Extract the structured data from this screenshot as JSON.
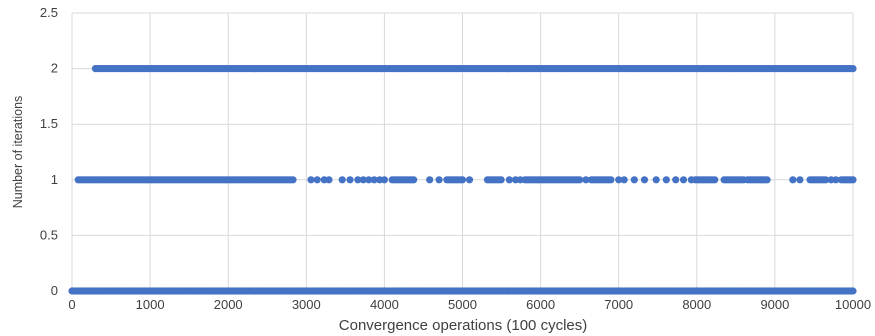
{
  "chart_data": {
    "type": "scatter",
    "title": "",
    "xlabel": "Convergence operations (100 cycles)",
    "ylabel": "Number of iterations",
    "xlim": [
      0,
      10000
    ],
    "ylim": [
      0,
      2.5
    ],
    "x_ticks": [
      0,
      1000,
      2000,
      3000,
      4000,
      5000,
      6000,
      7000,
      8000,
      9000,
      10000
    ],
    "y_ticks": [
      0,
      0.5,
      1,
      1.5,
      2,
      2.5
    ],
    "x_tick_labels": [
      "0",
      "1000",
      "2000",
      "3000",
      "4000",
      "5000",
      "6000",
      "7000",
      "8000",
      "9000",
      "10000"
    ],
    "y_tick_labels": [
      "0",
      "0.5",
      "1",
      "1.5",
      "2",
      "2.5"
    ],
    "grid": true,
    "legend": "none",
    "marker_color": "#4472C4",
    "series": [
      {
        "y": 0,
        "ranges": [
          [
            0,
            10000
          ]
        ],
        "points": []
      },
      {
        "y": 1,
        "ranges": [
          [
            80,
            2850
          ],
          [
            4100,
            4380
          ],
          [
            4800,
            5000
          ],
          [
            5320,
            5500
          ],
          [
            5800,
            6500
          ],
          [
            6650,
            6900
          ],
          [
            7980,
            8240
          ],
          [
            8350,
            8600
          ],
          [
            8650,
            8920
          ],
          [
            9450,
            9660
          ],
          [
            9850,
            10000
          ]
        ],
        "points": [
          3060,
          3140,
          3230,
          3290,
          3460,
          3560,
          3660,
          3730,
          3800,
          3870,
          3940,
          4000,
          4580,
          4700,
          5090,
          5600,
          5680,
          5740,
          6580,
          7000,
          7070,
          7200,
          7330,
          7480,
          7610,
          7730,
          7830,
          7930,
          9230,
          9320,
          9720,
          9780
        ]
      },
      {
        "y": 2,
        "ranges": [
          [
            300,
            10000
          ]
        ],
        "points": []
      }
    ]
  }
}
